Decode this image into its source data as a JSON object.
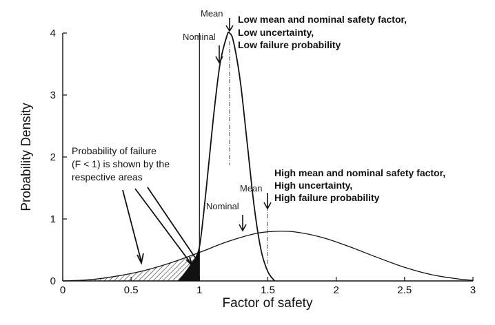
{
  "chart_data": {
    "type": "line",
    "title": "",
    "xlabel": "Factor of safety",
    "ylabel": "Probability Density",
    "xlim": [
      0,
      3
    ],
    "ylim": [
      0,
      4
    ],
    "xticks": [
      0,
      0.5,
      1,
      1.5,
      2,
      2.5,
      3
    ],
    "xtick_labels": [
      "0",
      "0.5",
      "1",
      "1.5",
      "2",
      "2.5",
      "3"
    ],
    "yticks": [
      0,
      1,
      2,
      3,
      4
    ],
    "ytick_labels": [
      "0",
      "1",
      "2",
      "3",
      "4"
    ],
    "grid": false,
    "failure_threshold": 1,
    "series": [
      {
        "x": [
          0.85,
          0.95,
          1.0,
          1.05,
          1.1,
          1.15,
          1.2,
          1.22,
          1.25,
          1.3,
          1.35,
          1.4,
          1.45,
          1.5,
          1.55
        ],
        "y": [
          0.0,
          0.3,
          0.55,
          1.5,
          2.6,
          3.5,
          3.95,
          4.0,
          3.85,
          3.2,
          2.2,
          1.2,
          0.5,
          0.15,
          0.0
        ]
      },
      {
        "x": [
          0.0,
          0.2,
          0.4,
          0.6,
          0.8,
          1.0,
          1.2,
          1.4,
          1.55,
          1.7,
          1.9,
          2.1,
          2.3,
          2.5,
          2.7,
          2.9,
          3.0
        ],
        "y": [
          0.0,
          0.02,
          0.08,
          0.17,
          0.3,
          0.46,
          0.63,
          0.76,
          0.8,
          0.79,
          0.7,
          0.55,
          0.38,
          0.22,
          0.1,
          0.03,
          0.01
        ]
      }
    ],
    "markers": [
      {
        "label": "Mean",
        "x": 1.22,
        "group": "low"
      },
      {
        "label": "Nominal",
        "x": 1.15,
        "group": "low"
      },
      {
        "label": "Mean",
        "x": 1.5,
        "group": "high"
      },
      {
        "label": "Nominal",
        "x": 1.32,
        "group": "high"
      }
    ],
    "annotations": {
      "low": [
        "Low mean and nominal safety factor,",
        "Low uncertainty,",
        "Low failure probability"
      ],
      "high": [
        "High mean and nominal safety factor,",
        "High uncertainty,",
        "High failure probability"
      ],
      "failure": [
        "Probability of failure",
        "(F < 1) is shown by the",
        "respective areas"
      ]
    }
  }
}
